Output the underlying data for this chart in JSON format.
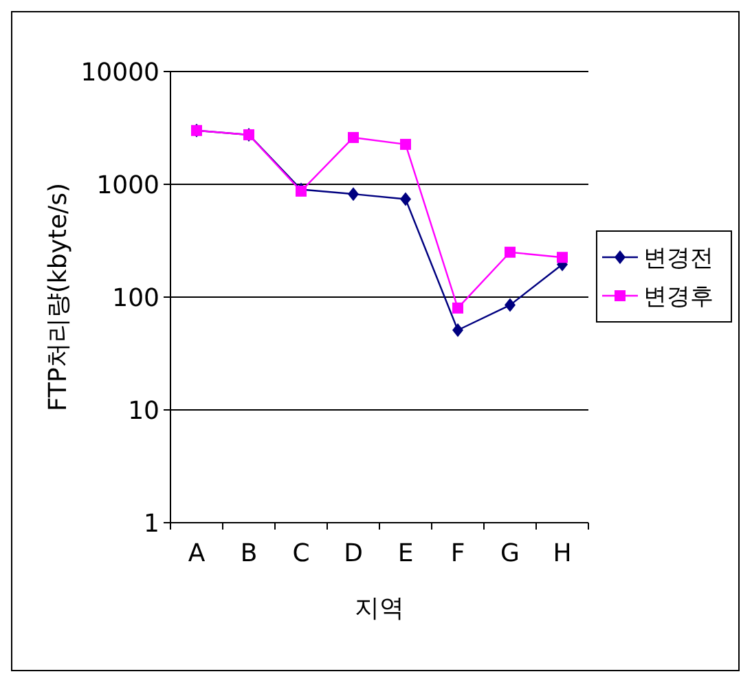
{
  "chart_data": {
    "type": "line",
    "xlabel": "지역",
    "ylabel": "FTP처리량(kbyte/s)",
    "categories": [
      "A",
      "B",
      "C",
      "D",
      "E",
      "F",
      "G",
      "H"
    ],
    "log": "y",
    "ylim": [
      1,
      10000
    ],
    "yticks": [
      1,
      10,
      100,
      1000,
      10000
    ],
    "grid": "y",
    "legend": "right",
    "series": [
      {
        "name": "변경전",
        "color": "#000080",
        "marker": "diamond",
        "values": [
          3000,
          2750,
          900,
          820,
          740,
          51,
          85,
          195
        ]
      },
      {
        "name": "변경후",
        "color": "#ff00ff",
        "marker": "square",
        "values": [
          3000,
          2750,
          870,
          2600,
          2260,
          80,
          250,
          225
        ]
      }
    ]
  }
}
